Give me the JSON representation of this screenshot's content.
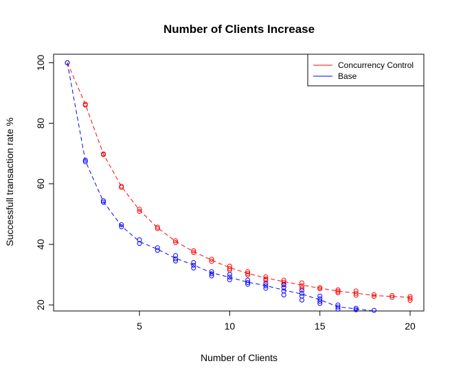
{
  "chart_data": {
    "type": "scatter",
    "title": "Number of Clients Increase",
    "xlabel": "Number of Clients",
    "ylabel": "Successfull transaction rate %",
    "xlim": [
      0.24,
      20.76
    ],
    "ylim": [
      18,
      102.8
    ],
    "xticks": [
      5,
      10,
      15,
      20
    ],
    "yticks": [
      20,
      40,
      60,
      80,
      100
    ],
    "grid": false,
    "legend_position": "top-right",
    "series": [
      {
        "name": "Concurrency Control",
        "color": "#ff0000",
        "line_x": [
          1,
          2,
          3,
          4,
          5,
          6,
          7,
          8,
          9,
          10,
          11,
          12,
          13,
          14,
          15,
          16,
          17,
          18,
          19,
          20
        ],
        "line_y": [
          100,
          86.3,
          69.8,
          59.1,
          51.3,
          45.5,
          41.0,
          37.6,
          34.8,
          32.3,
          30.4,
          28.9,
          27.7,
          26.6,
          25.5,
          24.6,
          23.9,
          23.1,
          22.8,
          22.5
        ],
        "points": [
          [
            1,
            100
          ],
          [
            2,
            86.3
          ],
          [
            2,
            86.0
          ],
          [
            3,
            69.9
          ],
          [
            3,
            69.6
          ],
          [
            4,
            59.2
          ],
          [
            4,
            58.8
          ],
          [
            5,
            51.6
          ],
          [
            5,
            50.9
          ],
          [
            6,
            45.7
          ],
          [
            6,
            45.2
          ],
          [
            7,
            41.2
          ],
          [
            7,
            40.6
          ],
          [
            8,
            37.9
          ],
          [
            8,
            37.3
          ],
          [
            9,
            35.1
          ],
          [
            9,
            34.4
          ],
          [
            10,
            32.8
          ],
          [
            10,
            32.0
          ],
          [
            10,
            31.5
          ],
          [
            11,
            31.0
          ],
          [
            11,
            30.4
          ],
          [
            11,
            29.9
          ],
          [
            12,
            29.3
          ],
          [
            12,
            28.6
          ],
          [
            12,
            28.1
          ],
          [
            13,
            28.2
          ],
          [
            13,
            27.5
          ],
          [
            13,
            26.6
          ],
          [
            14,
            27.3
          ],
          [
            14,
            26.3
          ],
          [
            14,
            25.6
          ],
          [
            15,
            25.7
          ],
          [
            15,
            25.3
          ],
          [
            16,
            25.0
          ],
          [
            16,
            24.5
          ],
          [
            16,
            24.0
          ],
          [
            17,
            24.6
          ],
          [
            17,
            23.8
          ],
          [
            17,
            23.2
          ],
          [
            18,
            23.4
          ],
          [
            18,
            22.8
          ],
          [
            19,
            23.1
          ],
          [
            19,
            22.5
          ],
          [
            20,
            22.8
          ],
          [
            20,
            22.2
          ],
          [
            20,
            21.5
          ]
        ]
      },
      {
        "name": "Base",
        "color": "#0000ff",
        "line_x": [
          1,
          2,
          3,
          4,
          5,
          6,
          7,
          8,
          9,
          10,
          11,
          12,
          13,
          14,
          15,
          16,
          17,
          18
        ],
        "line_y": [
          100,
          67.6,
          54.1,
          46.1,
          40.9,
          38.4,
          35.4,
          33.2,
          30.6,
          29.1,
          27.5,
          26.4,
          24.9,
          23.6,
          21.7,
          19.4,
          18.7,
          18.0
        ],
        "points": [
          [
            1,
            100
          ],
          [
            2,
            67.8
          ],
          [
            2,
            67.3
          ],
          [
            3,
            54.4
          ],
          [
            3,
            53.9
          ],
          [
            4,
            46.5
          ],
          [
            4,
            45.8
          ],
          [
            5,
            41.5
          ],
          [
            5,
            40.3
          ],
          [
            6,
            38.9
          ],
          [
            6,
            38.0
          ],
          [
            7,
            36.3
          ],
          [
            7,
            35.2
          ],
          [
            7,
            34.5
          ],
          [
            8,
            34.0
          ],
          [
            8,
            33.1
          ],
          [
            8,
            32.2
          ],
          [
            9,
            31.0
          ],
          [
            9,
            30.3
          ],
          [
            9,
            29.6
          ],
          [
            10,
            30.1
          ],
          [
            10,
            29.2
          ],
          [
            10,
            28.3
          ],
          [
            11,
            28.2
          ],
          [
            11,
            27.4
          ],
          [
            11,
            26.8
          ],
          [
            12,
            27.1
          ],
          [
            12,
            26.3
          ],
          [
            12,
            25.5
          ],
          [
            13,
            26.8
          ],
          [
            13,
            25.8
          ],
          [
            13,
            24.6
          ],
          [
            13,
            23.3
          ],
          [
            14,
            24.8
          ],
          [
            14,
            23.8
          ],
          [
            14,
            22.9
          ],
          [
            14,
            21.6
          ],
          [
            15,
            22.9
          ],
          [
            15,
            22.0
          ],
          [
            15,
            21.2
          ],
          [
            15,
            20.5
          ],
          [
            16,
            20.0
          ],
          [
            16,
            19.3
          ],
          [
            16,
            18.6
          ],
          [
            17,
            18.9
          ],
          [
            17,
            18.4
          ],
          [
            18,
            18.2
          ]
        ]
      }
    ]
  }
}
